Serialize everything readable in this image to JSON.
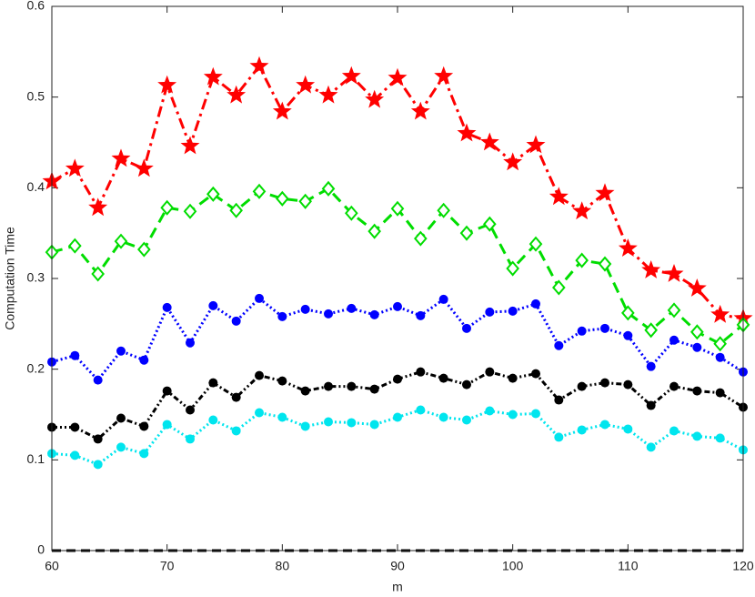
{
  "chart_data": {
    "type": "line",
    "x_label": "m",
    "y_label": "Computation Time",
    "x": [
      60,
      62,
      64,
      66,
      68,
      70,
      72,
      74,
      76,
      78,
      80,
      82,
      84,
      86,
      88,
      90,
      92,
      94,
      96,
      98,
      100,
      102,
      104,
      106,
      108,
      110,
      112,
      114,
      116,
      118,
      120
    ],
    "xlim": [
      60,
      120
    ],
    "xticks": [
      60,
      70,
      80,
      90,
      100,
      110,
      120
    ],
    "ylim": [
      0,
      0.6
    ],
    "yticks": [
      0,
      0.1,
      0.2,
      0.3,
      0.4,
      0.5,
      0.6
    ],
    "grid": false,
    "series": [
      {
        "color": "#ff0000",
        "marker": "star",
        "dash": "12,5,3,5",
        "values": [
          0.407,
          0.421,
          0.378,
          0.432,
          0.421,
          0.513,
          0.446,
          0.522,
          0.502,
          0.534,
          0.484,
          0.513,
          0.502,
          0.523,
          0.497,
          0.521,
          0.484,
          0.523,
          0.46,
          0.45,
          0.428,
          0.447,
          0.39,
          0.374,
          0.394,
          0.333,
          0.309,
          0.305,
          0.289,
          0.26,
          0.256
        ]
      },
      {
        "color": "#00dd00",
        "marker": "diamond",
        "dash": "12,7",
        "values": [
          0.329,
          0.336,
          0.305,
          0.341,
          0.332,
          0.378,
          0.374,
          0.393,
          0.375,
          0.396,
          0.388,
          0.385,
          0.399,
          0.372,
          0.352,
          0.377,
          0.344,
          0.375,
          0.35,
          0.36,
          0.311,
          0.338,
          0.29,
          0.32,
          0.316,
          0.262,
          0.243,
          0.265,
          0.241,
          0.228,
          0.249
        ]
      },
      {
        "color": "#0000ff",
        "marker": "dot",
        "dash": "2,3",
        "values": [
          0.208,
          0.215,
          0.188,
          0.22,
          0.21,
          0.268,
          0.229,
          0.27,
          0.253,
          0.278,
          0.258,
          0.266,
          0.261,
          0.267,
          0.26,
          0.269,
          0.259,
          0.277,
          0.245,
          0.263,
          0.264,
          0.272,
          0.226,
          0.242,
          0.245,
          0.237,
          0.203,
          0.232,
          0.224,
          0.213,
          0.197
        ]
      },
      {
        "color": "#000000",
        "marker": "dot",
        "dash": "6,3,2,3,2,3",
        "values": [
          0.136,
          0.136,
          0.123,
          0.146,
          0.137,
          0.176,
          0.155,
          0.185,
          0.169,
          0.193,
          0.187,
          0.176,
          0.181,
          0.181,
          0.178,
          0.189,
          0.197,
          0.19,
          0.183,
          0.197,
          0.19,
          0.195,
          0.166,
          0.181,
          0.185,
          0.183,
          0.16,
          0.181,
          0.176,
          0.174,
          0.158
        ]
      },
      {
        "color": "#00e5ee",
        "marker": "dot",
        "dash": "2,3",
        "values": [
          0.107,
          0.105,
          0.095,
          0.114,
          0.107,
          0.139,
          0.123,
          0.144,
          0.132,
          0.152,
          0.147,
          0.137,
          0.142,
          0.141,
          0.139,
          0.147,
          0.155,
          0.147,
          0.144,
          0.154,
          0.15,
          0.151,
          0.125,
          0.133,
          0.139,
          0.134,
          0.114,
          0.132,
          0.126,
          0.124,
          0.111
        ]
      },
      {
        "color": "#000000",
        "marker": "none",
        "dash": "10,6",
        "values": [
          0,
          0,
          0,
          0,
          0,
          0,
          0,
          0,
          0,
          0,
          0,
          0,
          0,
          0,
          0,
          0,
          0,
          0,
          0,
          0,
          0,
          0,
          0,
          0,
          0,
          0,
          0,
          0,
          0,
          0,
          0
        ]
      }
    ]
  }
}
